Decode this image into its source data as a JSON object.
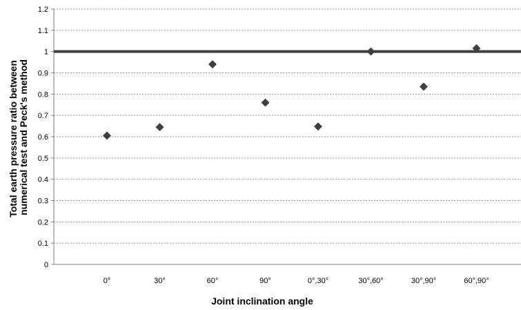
{
  "chart_data": {
    "type": "scatter",
    "title": "",
    "xlabel": "Joint inclination angle",
    "ylabel_lines": [
      "Total earth pressure ratio between",
      "numerical test and Peck's method"
    ],
    "categories": [
      "0°",
      "30°",
      "60°",
      "90°",
      "0°,30°",
      "30°,60°",
      "30°,90°",
      "60°,90°"
    ],
    "series": [
      {
        "values": [
          0.605,
          0.645,
          0.94,
          0.76,
          0.648,
          1.0,
          0.835,
          1.015
        ],
        "marker": "diamond",
        "color": "#404040"
      }
    ],
    "reference_line": {
      "y": 1.0,
      "color": "#404040"
    },
    "ylim": [
      0,
      1.2
    ],
    "yticks": [
      "0",
      "0.1",
      "0.2",
      "0.3",
      "0.4",
      "0.5",
      "0.6",
      "0.7",
      "0.8",
      "0.9",
      "1",
      "1.1",
      "1.2"
    ],
    "grid": true,
    "legend": "none"
  }
}
